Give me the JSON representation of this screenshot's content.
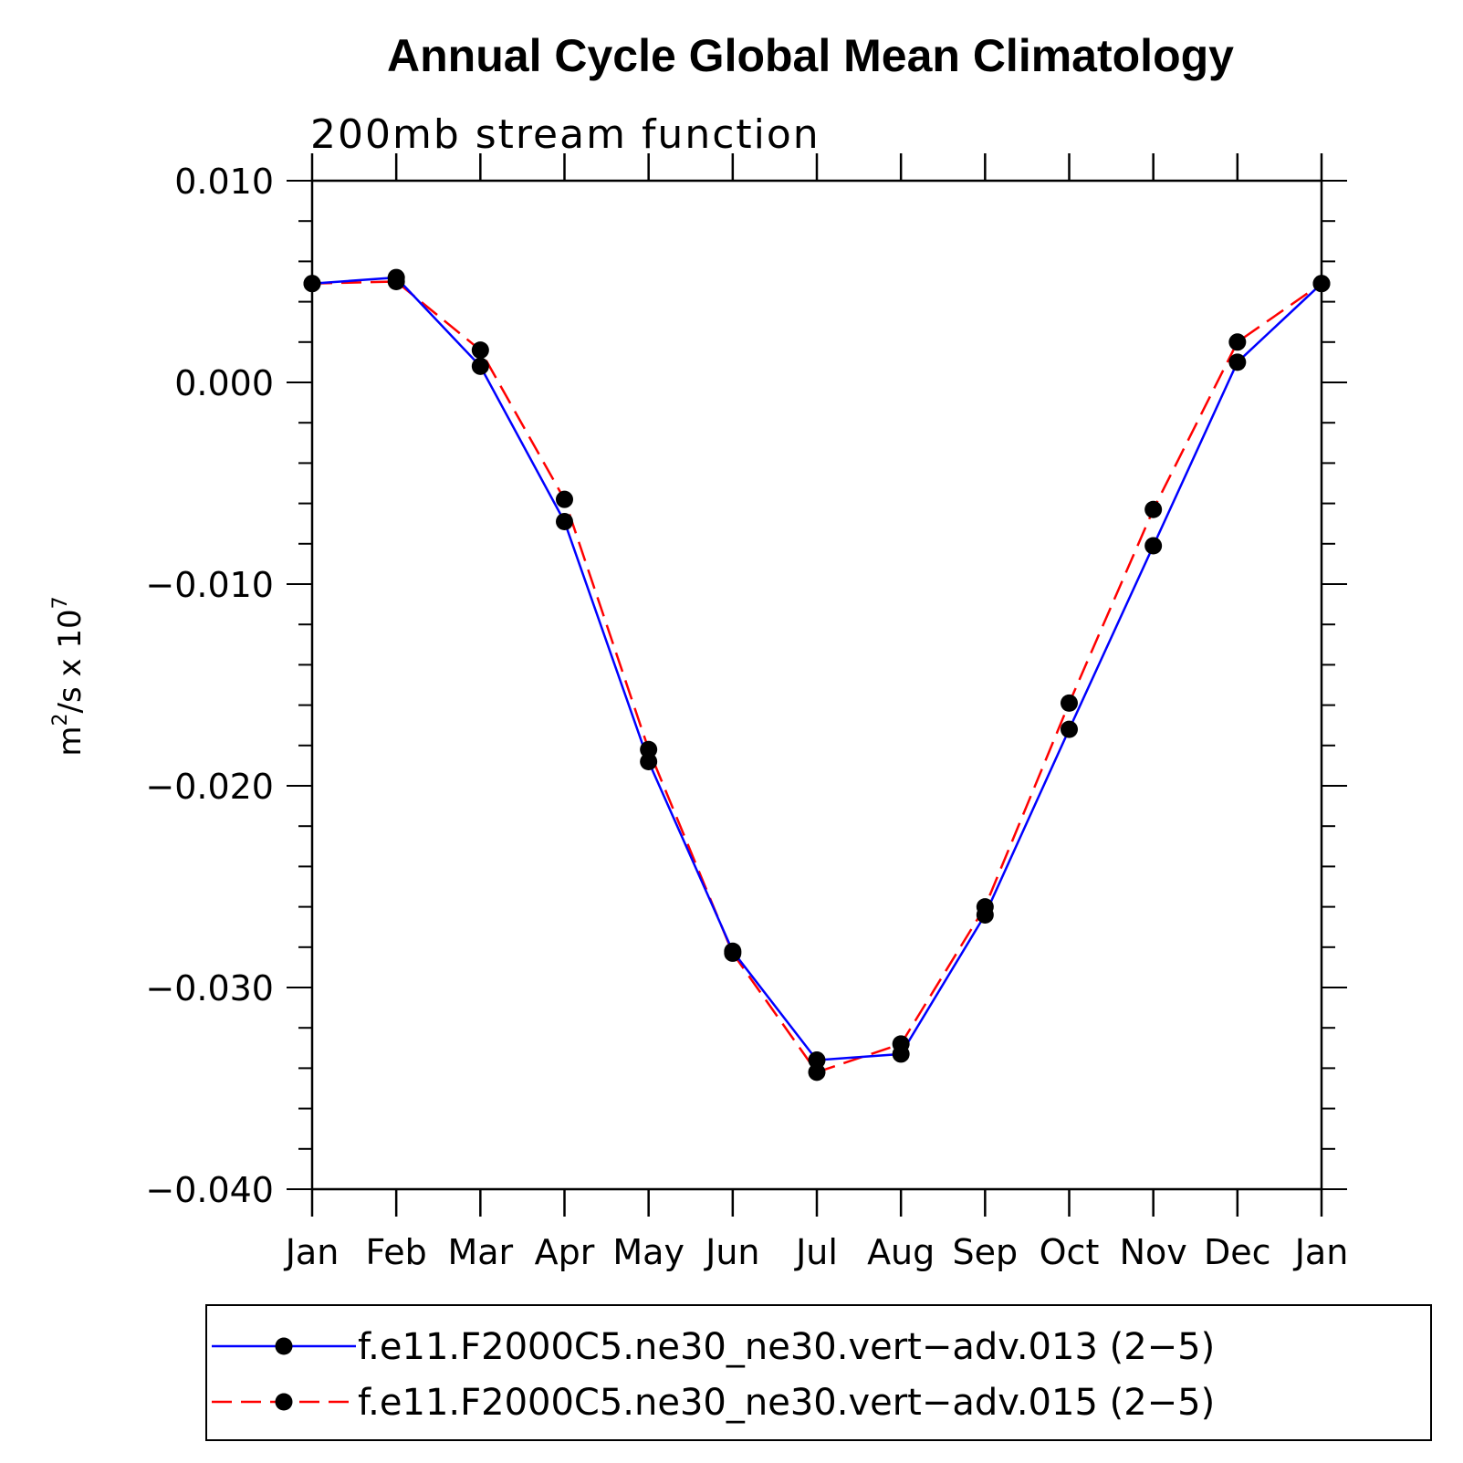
{
  "chart_data": {
    "type": "line",
    "title": "Annual Cycle Global Mean Climatology",
    "subtitle": "200mb stream function",
    "ylabel": "m²/s x 10⁷",
    "ylabel_parts": {
      "base": "m",
      "sup1": "2",
      "mid": "/s x 10",
      "sup2": "7"
    },
    "xlabel": "",
    "categories": [
      "Jan",
      "Feb",
      "Mar",
      "Apr",
      "May",
      "Jun",
      "Jul",
      "Aug",
      "Sep",
      "Oct",
      "Nov",
      "Dec",
      "Jan"
    ],
    "ylim": [
      -0.04,
      0.01
    ],
    "y_ticks": [
      0.01,
      0.0,
      -0.01,
      -0.02,
      -0.03,
      -0.04
    ],
    "y_tick_labels": [
      "0.010",
      "0.000",
      "−0.010",
      "−0.020",
      "−0.030",
      "−0.040"
    ],
    "grid": false,
    "legend_position": "bottom",
    "series": [
      {
        "name": "f.e11.F2000C5.ne30_ne30.vert−adv.013 (2−5)",
        "color": "#0000ff",
        "dash": "solid",
        "marker": "filled-circle",
        "values": [
          0.0049,
          0.0052,
          0.0008,
          -0.0069,
          -0.0188,
          -0.0282,
          -0.0336,
          -0.0333,
          -0.0264,
          -0.0172,
          -0.0081,
          0.001,
          0.0049
        ]
      },
      {
        "name": "f.e11.F2000C5.ne30_ne30.vert−adv.015 (2−5)",
        "color": "#ff0000",
        "dash": "dashed",
        "marker": "filled-circle",
        "values": [
          0.0049,
          0.005,
          0.0016,
          -0.0058,
          -0.0182,
          -0.0283,
          -0.0342,
          -0.0328,
          -0.026,
          -0.0159,
          -0.0063,
          0.002,
          0.0049
        ]
      }
    ]
  }
}
